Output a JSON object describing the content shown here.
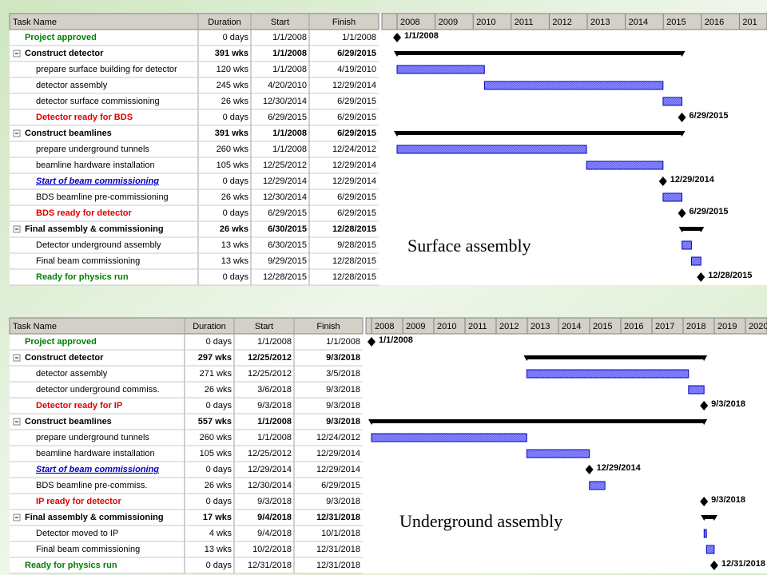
{
  "panels": [
    {
      "caption": "Surface assembly",
      "headers": [
        "Task Name",
        "Duration",
        "Start",
        "Finish"
      ],
      "years": [
        "2008",
        "2009",
        "2010",
        "2011",
        "2012",
        "2013",
        "2014",
        "2015",
        "2016",
        "201"
      ],
      "rows": [
        {
          "name": "Project approved",
          "duration": "0 days",
          "start": "1/1/2008",
          "finish": "1/1/2008",
          "kind": "milestone",
          "outline": 1,
          "color": "#008000"
        },
        {
          "name": "Construct detector",
          "duration": "391 wks",
          "start": "1/1/2008",
          "finish": "6/29/2015",
          "kind": "summary",
          "outline": 1,
          "color": "#000000"
        },
        {
          "name": "prepare surface building for detector",
          "duration": "120 wks",
          "start": "1/1/2008",
          "finish": "4/19/2010",
          "kind": "task",
          "outline": 2,
          "color": "#000000"
        },
        {
          "name": "detector assembly",
          "duration": "245 wks",
          "start": "4/20/2010",
          "finish": "12/29/2014",
          "kind": "task",
          "outline": 2,
          "color": "#000000"
        },
        {
          "name": "detector surface commissioning",
          "duration": "26 wks",
          "start": "12/30/2014",
          "finish": "6/29/2015",
          "kind": "task",
          "outline": 2,
          "color": "#000000"
        },
        {
          "name": "Detector ready for BDS",
          "duration": "0 days",
          "start": "6/29/2015",
          "finish": "6/29/2015",
          "kind": "milestone",
          "outline": 2,
          "color": "#e00000"
        },
        {
          "name": "Construct beamlines",
          "duration": "391 wks",
          "start": "1/1/2008",
          "finish": "6/29/2015",
          "kind": "summary",
          "outline": 1,
          "color": "#000000"
        },
        {
          "name": "prepare underground tunnels",
          "duration": "260 wks",
          "start": "1/1/2008",
          "finish": "12/24/2012",
          "kind": "task",
          "outline": 2,
          "color": "#000000"
        },
        {
          "name": "beamline hardware installation",
          "duration": "105 wks",
          "start": "12/25/2012",
          "finish": "12/29/2014",
          "kind": "task",
          "outline": 2,
          "color": "#000000"
        },
        {
          "name": "Start of beam commissioning",
          "duration": "0 days",
          "start": "12/29/2014",
          "finish": "12/29/2014",
          "kind": "milestone",
          "outline": 2,
          "color": "#0000c0",
          "italic": true
        },
        {
          "name": "BDS beamline pre-commissioning",
          "duration": "26 wks",
          "start": "12/30/2014",
          "finish": "6/29/2015",
          "kind": "task",
          "outline": 2,
          "color": "#000000"
        },
        {
          "name": "BDS ready for detector",
          "duration": "0 days",
          "start": "6/29/2015",
          "finish": "6/29/2015",
          "kind": "milestone",
          "outline": 2,
          "color": "#e00000"
        },
        {
          "name": "Final assembly & commissioning",
          "duration": "26 wks",
          "start": "6/30/2015",
          "finish": "12/28/2015",
          "kind": "summary",
          "outline": 1,
          "color": "#000000"
        },
        {
          "name": "Detector underground assembly",
          "duration": "13 wks",
          "start": "6/30/2015",
          "finish": "9/28/2015",
          "kind": "task",
          "outline": 2,
          "color": "#000000"
        },
        {
          "name": "Final beam commissioning",
          "duration": "13 wks",
          "start": "9/29/2015",
          "finish": "12/28/2015",
          "kind": "task",
          "outline": 2,
          "color": "#000000"
        },
        {
          "name": "Ready for physics run",
          "duration": "0 days",
          "start": "12/28/2015",
          "finish": "12/28/2015",
          "kind": "milestone",
          "outline": 2,
          "color": "#008000"
        }
      ]
    },
    {
      "caption": "Underground assembly",
      "headers": [
        "Task Name",
        "Duration",
        "Start",
        "Finish"
      ],
      "years": [
        "2008",
        "2009",
        "2010",
        "2011",
        "2012",
        "2013",
        "2014",
        "2015",
        "2016",
        "2017",
        "2018",
        "2019",
        "2020"
      ],
      "rows": [
        {
          "name": "Project approved",
          "duration": "0 days",
          "start": "1/1/2008",
          "finish": "1/1/2008",
          "kind": "milestone",
          "outline": 1,
          "color": "#008000"
        },
        {
          "name": "Construct detector",
          "duration": "297 wks",
          "start": "12/25/2012",
          "finish": "9/3/2018",
          "kind": "summary",
          "outline": 1,
          "color": "#000000"
        },
        {
          "name": "detector assembly",
          "duration": "271 wks",
          "start": "12/25/2012",
          "finish": "3/5/2018",
          "kind": "task",
          "outline": 2,
          "color": "#000000"
        },
        {
          "name": "detector underground commiss.",
          "duration": "26 wks",
          "start": "3/6/2018",
          "finish": "9/3/2018",
          "kind": "task",
          "outline": 2,
          "color": "#000000"
        },
        {
          "name": "Detector ready for IP",
          "duration": "0 days",
          "start": "9/3/2018",
          "finish": "9/3/2018",
          "kind": "milestone",
          "outline": 2,
          "color": "#e00000"
        },
        {
          "name": "Construct beamlines",
          "duration": "557 wks",
          "start": "1/1/2008",
          "finish": "9/3/2018",
          "kind": "summary",
          "outline": 1,
          "color": "#000000"
        },
        {
          "name": "prepare underground tunnels",
          "duration": "260 wks",
          "start": "1/1/2008",
          "finish": "12/24/2012",
          "kind": "task",
          "outline": 2,
          "color": "#000000"
        },
        {
          "name": "beamline hardware installation",
          "duration": "105 wks",
          "start": "12/25/2012",
          "finish": "12/29/2014",
          "kind": "task",
          "outline": 2,
          "color": "#000000"
        },
        {
          "name": "Start of beam commissioning",
          "duration": "0 days",
          "start": "12/29/2014",
          "finish": "12/29/2014",
          "kind": "milestone",
          "outline": 2,
          "color": "#0000c0",
          "italic": true
        },
        {
          "name": "BDS beamline pre-commiss.",
          "duration": "26 wks",
          "start": "12/30/2014",
          "finish": "6/29/2015",
          "kind": "task",
          "outline": 2,
          "color": "#000000"
        },
        {
          "name": "IP ready for detector",
          "duration": "0 days",
          "start": "9/3/2018",
          "finish": "9/3/2018",
          "kind": "milestone",
          "outline": 2,
          "color": "#e00000"
        },
        {
          "name": "Final assembly & commissioning",
          "duration": "17 wks",
          "start": "9/4/2018",
          "finish": "12/31/2018",
          "kind": "summary",
          "outline": 1,
          "color": "#000000"
        },
        {
          "name": "Detector moved to IP",
          "duration": "4 wks",
          "start": "9/4/2018",
          "finish": "10/1/2018",
          "kind": "task",
          "outline": 2,
          "color": "#000000"
        },
        {
          "name": "Final beam commissioning",
          "duration": "13 wks",
          "start": "10/2/2018",
          "finish": "12/31/2018",
          "kind": "task",
          "outline": 2,
          "color": "#000000"
        },
        {
          "name": "Ready for physics run",
          "duration": "0 days",
          "start": "12/31/2018",
          "finish": "12/31/2018",
          "kind": "milestone",
          "outline": 1,
          "color": "#008000"
        }
      ]
    }
  ]
}
